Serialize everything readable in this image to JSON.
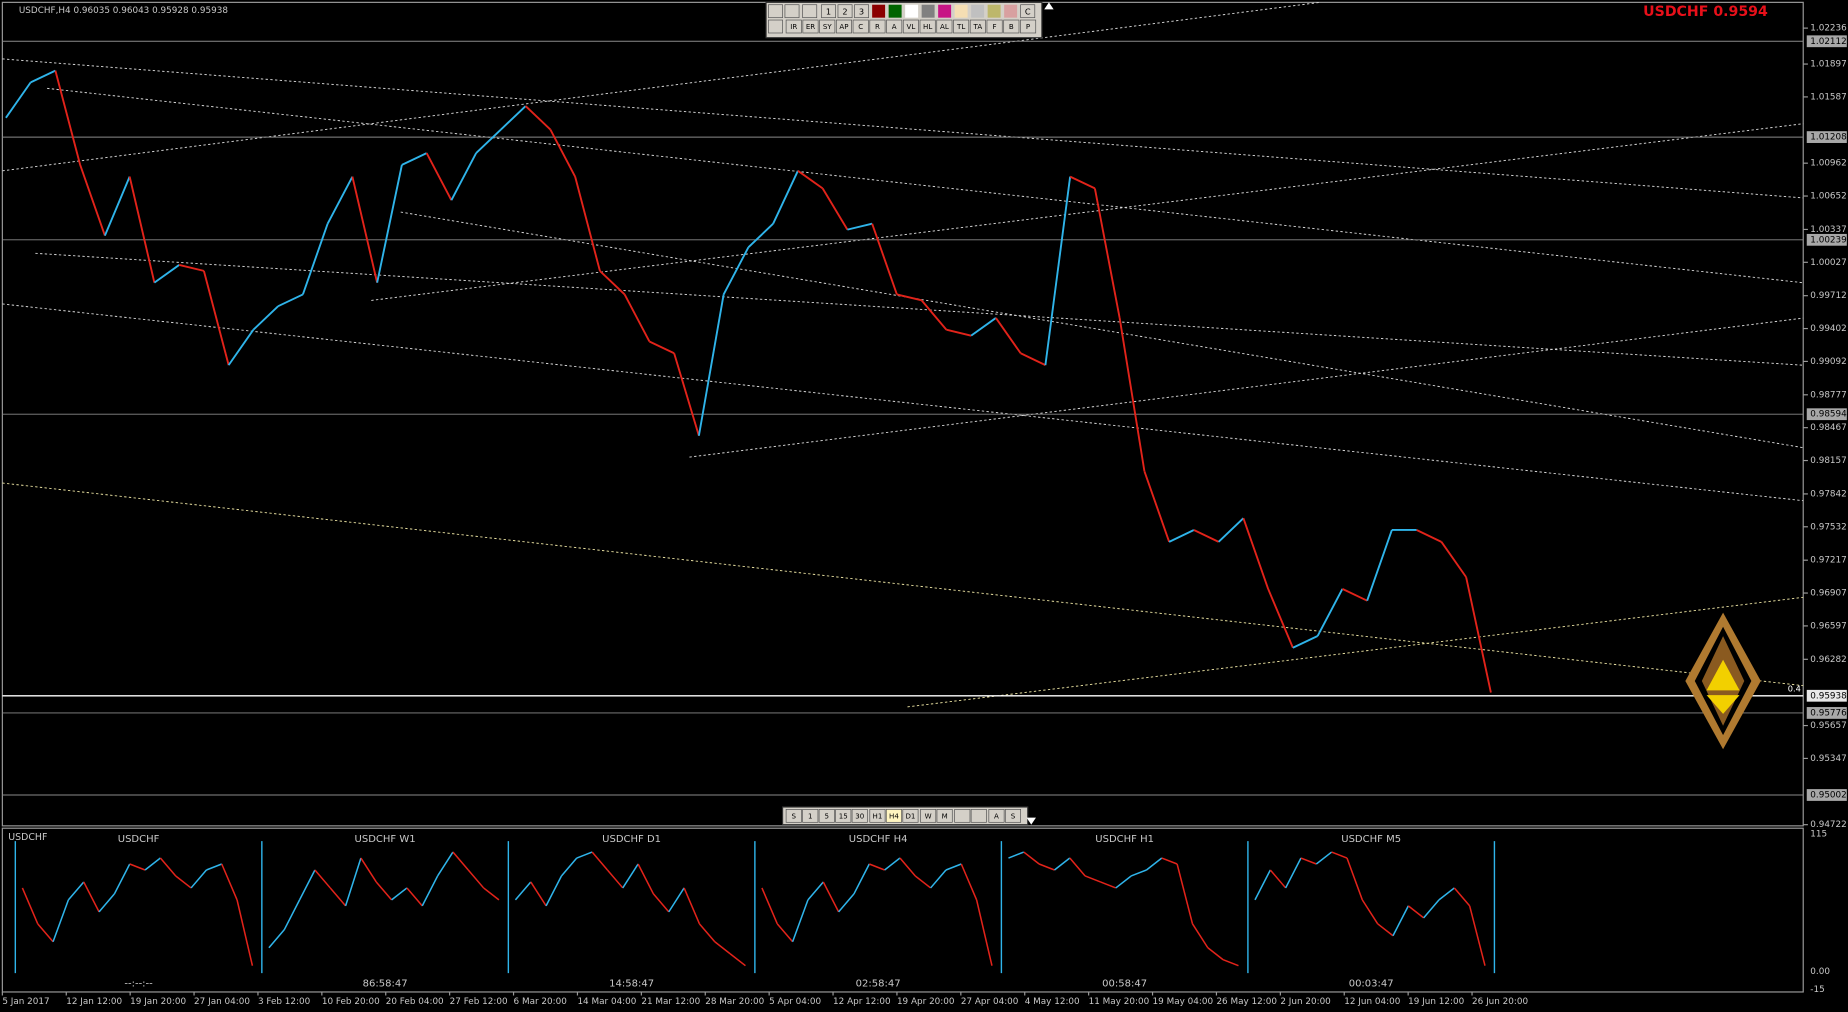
{
  "header": {
    "symbol_info": "USDCHF,H4  0.96035 0.96043 0.95928 0.95938",
    "quote": "USDCHF 0.9594",
    "marker": "0.4"
  },
  "toolbar_top": {
    "row1": [
      "1",
      "2",
      "3",
      "C"
    ],
    "row2": [
      "IR",
      "ER",
      "SY",
      "AP",
      "C",
      "R",
      "A",
      "VL",
      "HL",
      "AL",
      "TL",
      "TA",
      "F",
      "B",
      "P"
    ]
  },
  "toolbar_bottom": [
    "S",
    "1",
    "5",
    "15",
    "30",
    "H1",
    "H4",
    "D1",
    "W",
    "M",
    "A",
    "S"
  ],
  "chart_data": {
    "type": "line",
    "up_color": "#2fb4ea",
    "down_color": "#e2231a",
    "values": [
      1.0139,
      1.01724,
      1.01835,
      1.00946,
      1.00279,
      1.00835,
      0.99835,
      1.00002,
      0.99946,
      0.99057,
      0.99391,
      0.99613,
      0.99724,
      1.00391,
      1.00835,
      0.99835,
      1.00946,
      1.01057,
      1.00613,
      1.01057,
      1.01279,
      1.01501,
      1.01279,
      1.00835,
      0.99946,
      0.99724,
      0.9928,
      0.99169,
      0.98391,
      0.99724,
      1.00168,
      1.00391,
      1.0089,
      1.00724,
      1.00335,
      1.00391,
      0.99724,
      0.99668,
      0.99391,
      0.99335,
      0.99502,
      0.99169,
      0.99057,
      1.00835,
      1.00724,
      0.99502,
      0.98057,
      0.9739,
      0.97502,
      0.9739,
      0.97613,
      0.96946,
      0.96391,
      0.96502,
      0.96946,
      0.96835,
      0.97502,
      0.97502,
      0.9739,
      0.97057,
      0.95968
    ],
    "ylim": [
      0.94722,
      1.02479
    ],
    "yticks": [
      1.02236,
      1.01897,
      1.01587,
      1.00962,
      1.00652,
      1.00337,
      1.00027,
      0.99712,
      0.99402,
      0.99092,
      0.98777,
      0.98467,
      0.98157,
      0.97842,
      0.97532,
      0.97217,
      0.96907,
      0.96597,
      0.96282,
      0.95657,
      0.95347,
      0.94722
    ],
    "levels": [
      1.02112,
      1.01208,
      1.00239,
      0.98594,
      0.95938,
      0.95776,
      0.95002
    ],
    "time_labels": [
      "5 Jan 2017",
      "12 Jan 12:00",
      "19 Jan 20:00",
      "27 Jan 04:00",
      "3 Feb 12:00",
      "10 Feb 20:00",
      "20 Feb 04:00",
      "27 Feb 12:00",
      "6 Mar 20:00",
      "14 Mar 04:00",
      "21 Mar 12:00",
      "28 Mar 20:00",
      "5 Apr 04:00",
      "12 Apr 12:00",
      "19 Apr 20:00",
      "27 Apr 04:00",
      "4 May 12:00",
      "11 May 20:00",
      "19 May 04:00",
      "26 May 12:00",
      "2 Jun 20:00",
      "12 Jun 04:00",
      "19 Jun 12:00",
      "26 Jun 20:00"
    ]
  },
  "subwindow": {
    "title": "USDCHF",
    "ylim": [
      -15,
      115
    ],
    "yticks": [
      115,
      {
        "value": 0,
        "label": "0.00"
      },
      -15
    ],
    "panels": [
      {
        "label": "USDCHF",
        "timer": "--:--:--",
        "values": [
          70,
          40,
          25,
          60,
          75,
          50,
          65,
          90,
          85,
          95,
          80,
          70,
          85,
          90,
          60,
          5
        ]
      },
      {
        "label": "USDCHF W1",
        "timer": "86:58:47",
        "values": [
          20,
          35,
          60,
          85,
          70,
          55,
          95,
          75,
          60,
          70,
          55,
          80,
          100,
          85,
          70,
          60
        ]
      },
      {
        "label": "USDCHF D1",
        "timer": "14:58:47",
        "values": [
          60,
          75,
          55,
          80,
          95,
          100,
          85,
          70,
          90,
          65,
          50,
          70,
          40,
          25,
          15,
          5
        ]
      },
      {
        "label": "USDCHF H4",
        "timer": "02:58:47",
        "values": [
          70,
          40,
          25,
          60,
          75,
          50,
          65,
          90,
          85,
          95,
          80,
          70,
          85,
          90,
          60,
          5
        ]
      },
      {
        "label": "USDCHF H1",
        "timer": "00:58:47",
        "values": [
          95,
          100,
          90,
          85,
          95,
          80,
          75,
          70,
          80,
          85,
          95,
          90,
          40,
          20,
          10,
          5
        ]
      },
      {
        "label": "USDCHF M5",
        "timer": "00:03:47",
        "values": [
          60,
          85,
          70,
          95,
          90,
          100,
          95,
          60,
          40,
          30,
          55,
          45,
          60,
          70,
          55,
          5
        ]
      }
    ]
  }
}
